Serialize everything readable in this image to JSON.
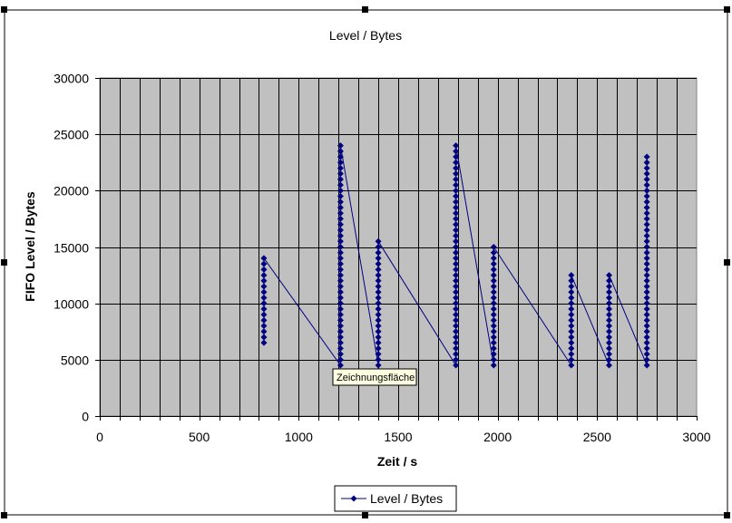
{
  "colors": {
    "plot_background": "#c0c0c0",
    "series_color": "#000080",
    "grid_color": "#000000",
    "tooltip_background": "#ffffe1"
  },
  "tooltip": {
    "text": "Zeichnungsfläche"
  },
  "chart_data": {
    "type": "scatter",
    "title": "Level / Bytes",
    "xlabel": "Zeit / s",
    "ylabel": "FIFO Level / Bytes",
    "xlim": [
      0,
      3000
    ],
    "ylim": [
      0,
      30000
    ],
    "xticks": [
      0,
      500,
      1000,
      1500,
      2000,
      2500,
      3000
    ],
    "yticks": [
      0,
      5000,
      10000,
      15000,
      20000,
      25000,
      30000
    ],
    "x_minor_gridline_interval": 100,
    "grid": true,
    "legend": {
      "placement": "bottom",
      "entries": [
        "Level / Bytes"
      ]
    },
    "marker": "diamond",
    "series": [
      {
        "name": "Level / Bytes",
        "segments": [
          {
            "x": 825,
            "y_from": 6500,
            "y_to": 14000,
            "step": 500
          },
          {
            "x": 1210,
            "y_from": 4500,
            "y_to": 24000,
            "step": 500
          },
          {
            "x": 1400,
            "y_from": 4500,
            "y_to": 15500,
            "step": 500
          },
          {
            "x": 1790,
            "y_from": 4500,
            "y_to": 24000,
            "step": 500
          },
          {
            "x": 1980,
            "y_from": 4500,
            "y_to": 15000,
            "step": 500
          },
          {
            "x": 2370,
            "y_from": 4500,
            "y_to": 12500,
            "step": 500
          },
          {
            "x": 2560,
            "y_from": 4500,
            "y_to": 12500,
            "step": 500
          },
          {
            "x": 2750,
            "y_from": 4500,
            "y_to": 23000,
            "step": 500
          }
        ]
      }
    ]
  }
}
